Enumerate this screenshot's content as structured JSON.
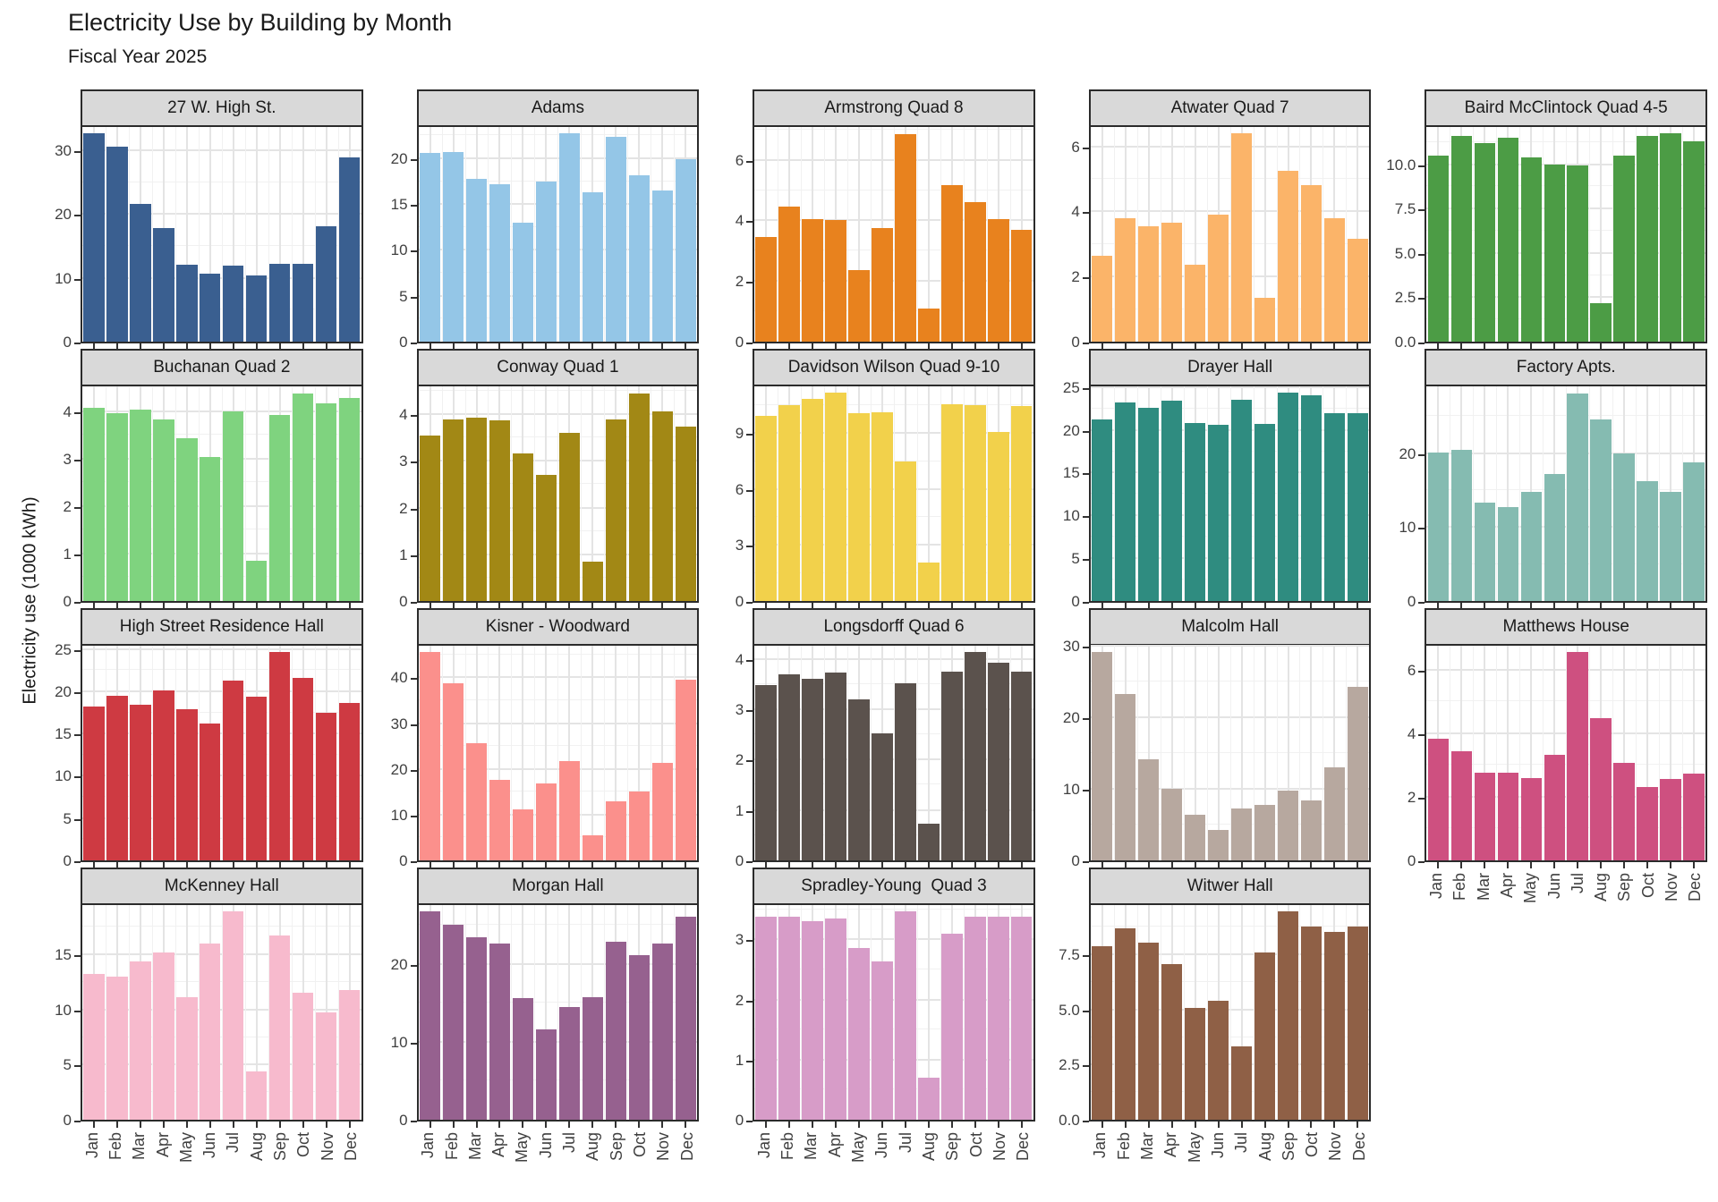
{
  "header": {
    "title": "Electricity Use by Building by Month",
    "subtitle": "Fiscal Year 2025"
  },
  "axis": {
    "y_label": "Electricity use (1000 kWh)"
  },
  "theme": {
    "strip_bg": "#d9d9d9",
    "panel_border": "#2b2b2b",
    "grid_major": "#e4e4e4",
    "grid_minor": "#f1f1f1",
    "axis_text": "#404040",
    "background": "#ffffff"
  },
  "chart_data": {
    "type": "bar",
    "facet_by": "building",
    "x": [
      "Jan",
      "Feb",
      "Mar",
      "Apr",
      "May",
      "Jun",
      "Jul",
      "Aug",
      "Sep",
      "Oct",
      "Nov",
      "Dec"
    ],
    "xlabel": "",
    "ylabel": "Electricity use (1000 kWh)",
    "grid_layout": {
      "columns": 5,
      "rows": 4,
      "free_y_scales": true
    },
    "facets": [
      {
        "name": "27 W. High St.",
        "color": "#3a5f90",
        "ylim": [
          0,
          34.2
        ],
        "yticks": [
          0,
          10,
          20,
          30
        ],
        "ytick_labels": [
          "0",
          "10",
          "20",
          "30"
        ],
        "x_axis": false,
        "values": [
          32.6,
          30.5,
          21.6,
          17.8,
          12.1,
          10.6,
          11.9,
          10.4,
          12.2,
          12.2,
          18.1,
          28.9
        ]
      },
      {
        "name": "Adams",
        "color": "#94c6e7",
        "ylim": [
          0,
          23.8
        ],
        "yticks": [
          0,
          5,
          10,
          15,
          20
        ],
        "ytick_labels": [
          "0",
          "5",
          "10",
          "15",
          "20"
        ],
        "x_axis": false,
        "values": [
          20.6,
          20.7,
          17.8,
          17.2,
          13.0,
          17.5,
          22.7,
          16.3,
          22.3,
          18.1,
          16.5,
          19.9
        ]
      },
      {
        "name": "Armstrong Quad 8",
        "color": "#e8821e",
        "ylim": [
          0,
          7.2
        ],
        "yticks": [
          0,
          2,
          4,
          6
        ],
        "ytick_labels": [
          "0",
          "2",
          "4",
          "6"
        ],
        "x_axis": false,
        "values": [
          3.45,
          4.45,
          4.05,
          4.0,
          2.35,
          3.75,
          6.85,
          1.1,
          5.15,
          4.6,
          4.05,
          3.7
        ]
      },
      {
        "name": "Atwater Quad 7",
        "color": "#fbb469",
        "ylim": [
          0,
          6.7
        ],
        "yticks": [
          0,
          2,
          4,
          6
        ],
        "ytick_labels": [
          "0",
          "2",
          "4",
          "6"
        ],
        "x_axis": false,
        "values": [
          2.65,
          3.8,
          3.55,
          3.65,
          2.35,
          3.9,
          6.4,
          1.35,
          5.25,
          4.8,
          3.8,
          3.15
        ]
      },
      {
        "name": "Baird McClintock Quad 4-5",
        "color": "#4c9c45",
        "ylim": [
          0,
          12.3
        ],
        "yticks": [
          0,
          2.5,
          5,
          7.5,
          10
        ],
        "ytick_labels": [
          "0.0",
          "2.5",
          "5.0",
          "7.5",
          "10.0"
        ],
        "x_axis": false,
        "values": [
          10.5,
          11.6,
          11.2,
          11.5,
          10.4,
          10.0,
          9.95,
          2.15,
          10.5,
          11.6,
          11.75,
          11.3
        ]
      },
      {
        "name": "Buchanan Quad 2",
        "color": "#7fd37f",
        "ylim": [
          0,
          4.6
        ],
        "yticks": [
          0,
          1,
          2,
          3,
          4
        ],
        "ytick_labels": [
          "0",
          "1",
          "2",
          "3",
          "4"
        ],
        "x_axis": false,
        "values": [
          4.07,
          3.95,
          4.03,
          3.83,
          3.43,
          3.03,
          4.0,
          0.85,
          3.93,
          4.38,
          4.17,
          4.28
        ]
      },
      {
        "name": "Conway Quad 1",
        "color": "#a28815",
        "ylim": [
          0,
          4.67
        ],
        "yticks": [
          0,
          1,
          2,
          3,
          4
        ],
        "ytick_labels": [
          "0",
          "1",
          "2",
          "3",
          "4"
        ],
        "x_axis": false,
        "values": [
          3.55,
          3.88,
          3.92,
          3.86,
          3.15,
          2.7,
          3.6,
          0.85,
          3.88,
          4.45,
          4.05,
          3.73
        ]
      },
      {
        "name": "Davidson Wilson Quad 9-10",
        "color": "#f2d14b",
        "ylim": [
          0,
          11.7
        ],
        "yticks": [
          0,
          3,
          6,
          9
        ],
        "ytick_labels": [
          "0",
          "3",
          "6",
          "9"
        ],
        "x_axis": false,
        "values": [
          9.95,
          10.5,
          10.85,
          11.15,
          10.05,
          10.1,
          7.5,
          2.05,
          10.55,
          10.5,
          9.05,
          10.45
        ]
      },
      {
        "name": "Drayer Hall",
        "color": "#2f8c80",
        "ylim": [
          0,
          25.5
        ],
        "yticks": [
          0,
          5,
          10,
          15,
          20,
          25
        ],
        "ytick_labels": [
          "0",
          "5",
          "10",
          "15",
          "20",
          "25"
        ],
        "x_axis": false,
        "values": [
          21.2,
          23.2,
          22.6,
          23.4,
          20.8,
          20.6,
          23.5,
          20.7,
          24.3,
          24.0,
          21.9,
          21.9
        ]
      },
      {
        "name": "Factory Apts.",
        "color": "#85bbb1",
        "ylim": [
          0,
          29.5
        ],
        "yticks": [
          0,
          10,
          20
        ],
        "ytick_labels": [
          "0",
          "10",
          "20"
        ],
        "x_axis": false,
        "values": [
          20.1,
          20.4,
          13.3,
          12.7,
          14.7,
          17.2,
          28.1,
          24.5,
          19.9,
          16.2,
          14.8,
          18.7
        ]
      },
      {
        "name": "High Street Residence Hall",
        "color": "#ce3a42",
        "ylim": [
          0,
          25.8
        ],
        "yticks": [
          0,
          5,
          10,
          15,
          20,
          25
        ],
        "ytick_labels": [
          "0",
          "5",
          "10",
          "15",
          "20",
          "25"
        ],
        "x_axis": false,
        "values": [
          18.2,
          19.5,
          18.4,
          20.1,
          17.9,
          16.2,
          21.3,
          19.3,
          24.6,
          21.6,
          17.4,
          18.6
        ]
      },
      {
        "name": "Kisner - Woodward",
        "color": "#fb908c",
        "ylim": [
          0,
          47.7
        ],
        "yticks": [
          0,
          10,
          20,
          30,
          40
        ],
        "ytick_labels": [
          "0",
          "10",
          "20",
          "30",
          "40"
        ],
        "x_axis": false,
        "values": [
          45.5,
          38.8,
          25.6,
          17.6,
          11.1,
          16.8,
          21.7,
          5.4,
          13.0,
          15.1,
          21.3,
          39.5
        ]
      },
      {
        "name": "Longsdorff Quad 6",
        "color": "#5b524d",
        "ylim": [
          0,
          4.33
        ],
        "yticks": [
          0,
          1,
          2,
          3,
          4
        ],
        "ytick_labels": [
          "0",
          "1",
          "2",
          "3",
          "4"
        ],
        "x_axis": false,
        "values": [
          3.47,
          3.7,
          3.6,
          3.73,
          3.2,
          2.52,
          3.52,
          0.73,
          3.75,
          4.13,
          3.92,
          3.75
        ]
      },
      {
        "name": "Malcolm Hall",
        "color": "#b7a89f",
        "ylim": [
          0,
          30.5
        ],
        "yticks": [
          0,
          10,
          20,
          30
        ],
        "ytick_labels": [
          "0",
          "10",
          "20",
          "30"
        ],
        "x_axis": false,
        "values": [
          29.1,
          23.2,
          14.1,
          10.0,
          6.4,
          4.3,
          7.2,
          7.7,
          9.7,
          8.4,
          13.0,
          24.3
        ]
      },
      {
        "name": "Matthews House",
        "color": "#ce5080",
        "ylim": [
          0,
          6.87
        ],
        "yticks": [
          0,
          2,
          4,
          6
        ],
        "ytick_labels": [
          "0",
          "2",
          "4",
          "6"
        ],
        "x_axis": true,
        "values": [
          3.83,
          3.44,
          2.77,
          2.77,
          2.6,
          3.32,
          6.55,
          4.49,
          3.06,
          2.32,
          2.55,
          2.72
        ]
      },
      {
        "name": "McKenney Hall",
        "color": "#f7bacd",
        "ylim": [
          0,
          19.8
        ],
        "yticks": [
          0,
          5,
          10,
          15
        ],
        "ytick_labels": [
          "0",
          "5",
          "10",
          "15"
        ],
        "x_axis": true,
        "values": [
          13.2,
          13.0,
          14.4,
          15.2,
          11.1,
          16.0,
          18.9,
          4.4,
          16.7,
          11.5,
          9.7,
          11.8
        ]
      },
      {
        "name": "Morgan Hall",
        "color": "#96618f",
        "ylim": [
          0,
          28.0
        ],
        "yticks": [
          0,
          10,
          20
        ],
        "ytick_labels": [
          "0",
          "10",
          "20"
        ],
        "x_axis": true,
        "values": [
          26.7,
          25.0,
          23.4,
          22.6,
          15.6,
          11.6,
          14.5,
          15.7,
          22.8,
          21.1,
          22.6,
          26.1
        ]
      },
      {
        "name": "Spradley-Young  Quad 3",
        "color": "#d79cc8",
        "ylim": [
          0,
          3.63
        ],
        "yticks": [
          0,
          1,
          2,
          3
        ],
        "ytick_labels": [
          "0",
          "1",
          "2",
          "3"
        ],
        "x_axis": true,
        "values": [
          3.37,
          3.38,
          3.31,
          3.35,
          2.86,
          2.64,
          3.46,
          0.7,
          3.09,
          3.37,
          3.38,
          3.37
        ]
      },
      {
        "name": "Witwer Hall",
        "color": "#8f6046",
        "ylim": [
          0,
          9.9
        ],
        "yticks": [
          0,
          2.5,
          5,
          7.5
        ],
        "ytick_labels": [
          "0.0",
          "2.5",
          "5.0",
          "7.5"
        ],
        "x_axis": true,
        "values": [
          7.87,
          8.69,
          8.02,
          7.05,
          5.09,
          5.41,
          3.31,
          7.57,
          9.45,
          8.78,
          8.51,
          8.75
        ]
      }
    ]
  }
}
